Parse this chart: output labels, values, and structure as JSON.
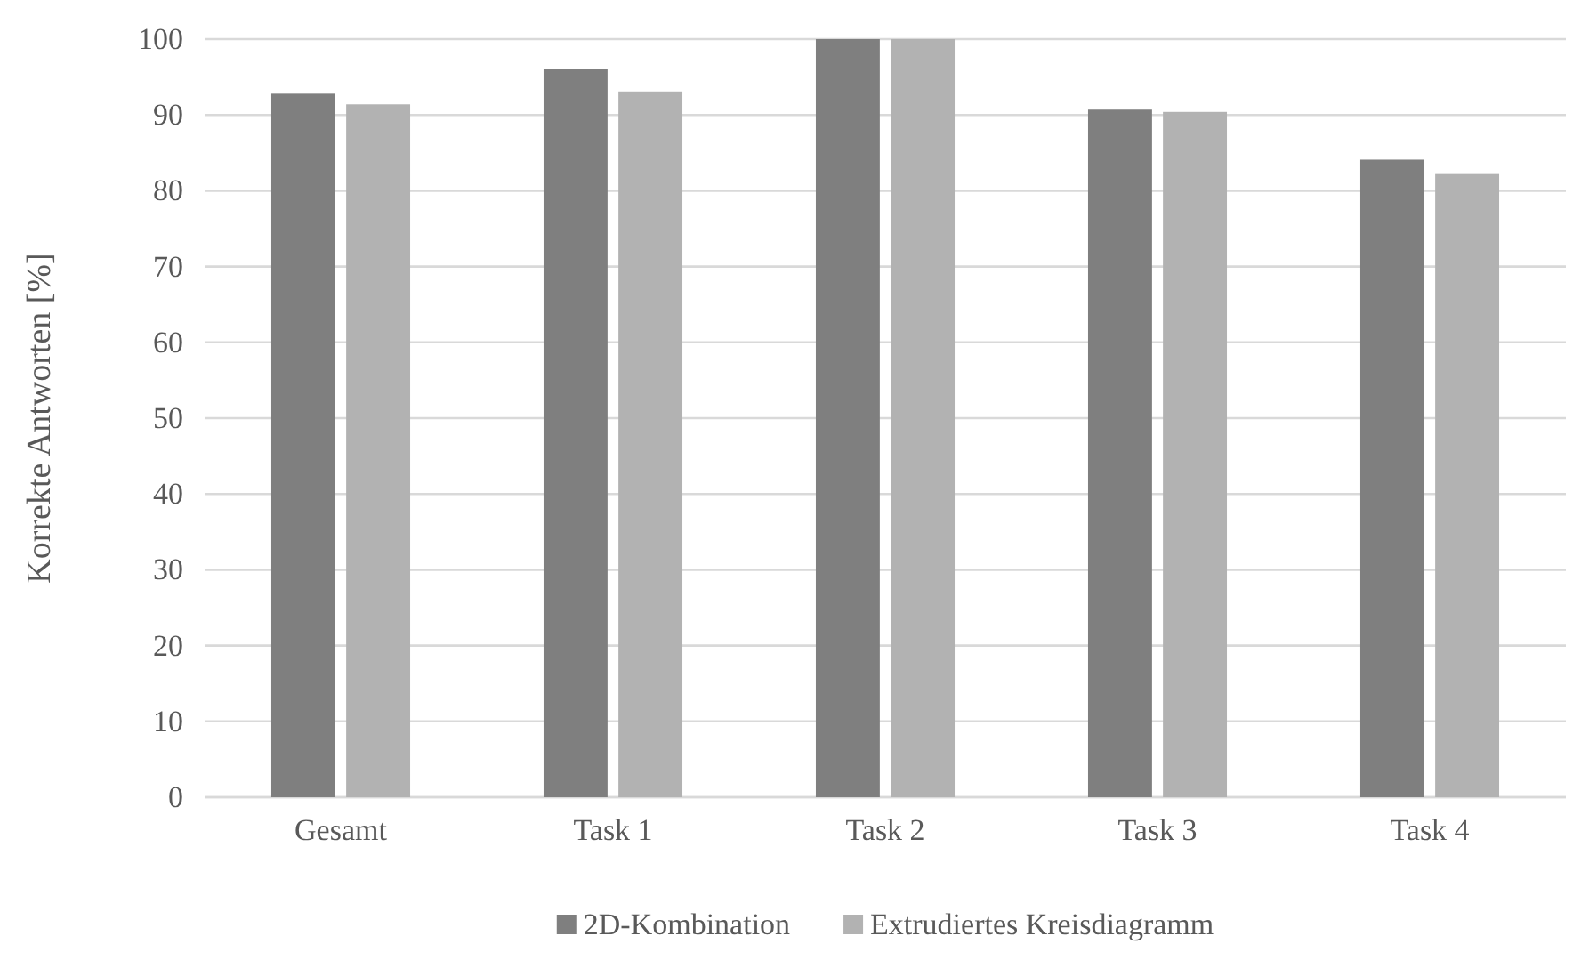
{
  "chart_data": {
    "type": "bar",
    "ylabel": "Korrekte Antworten [%]",
    "categories": [
      "Gesamt",
      "Task 1",
      "Task 2",
      "Task 3",
      "Task 4"
    ],
    "series": [
      {
        "name": "2D-Kombination",
        "color": "#7f7f7f",
        "values": [
          92.8,
          96.1,
          100,
          90.7,
          84.1
        ]
      },
      {
        "name": "Extrudiertes Kreisdiagramm",
        "color": "#b2b2b2",
        "values": [
          91.4,
          93.1,
          100,
          90.4,
          82.2
        ]
      }
    ],
    "ylim": [
      0,
      100
    ],
    "yticks": [
      0,
      10,
      20,
      30,
      40,
      50,
      60,
      70,
      80,
      90,
      100
    ],
    "grid": "y",
    "legend": "bottom"
  }
}
